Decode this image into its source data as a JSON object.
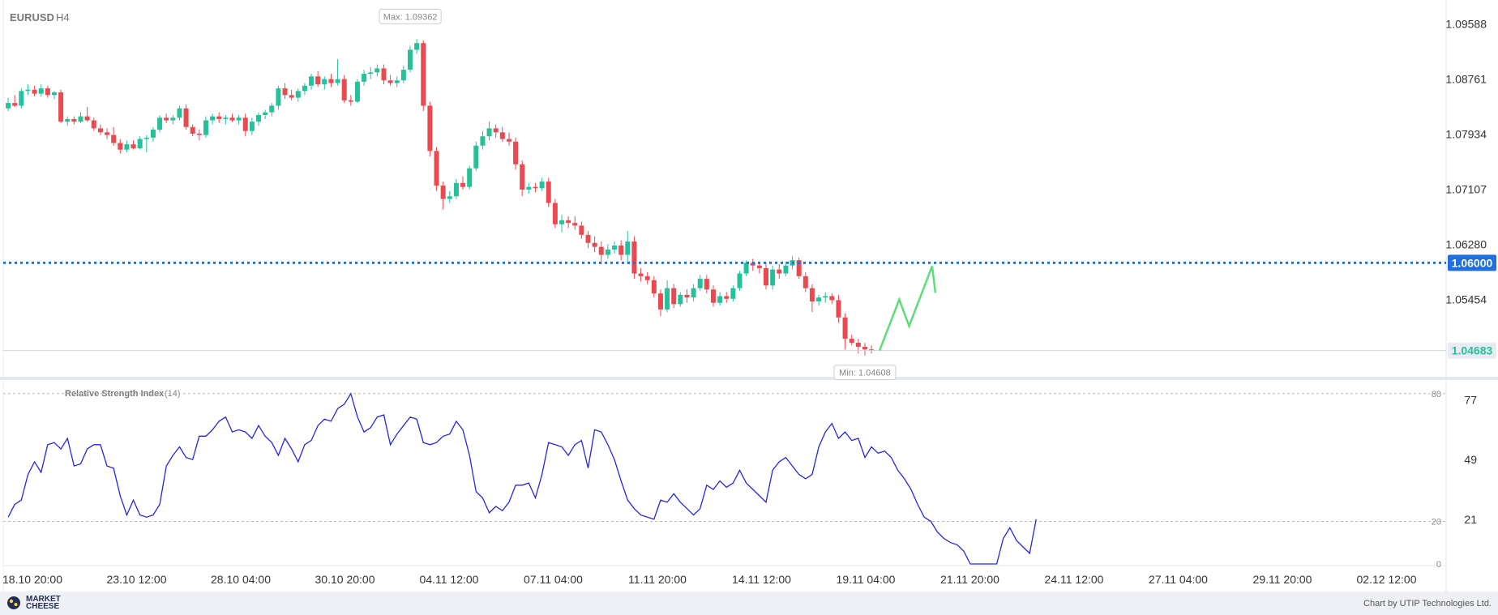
{
  "colors": {
    "up": "#26c09a",
    "down": "#e84a4f",
    "rsi_line": "#2727d6",
    "level_line": "#1f6fe0",
    "forecast": "#5fdc7a",
    "grid_dashed": "#bbbbbb"
  },
  "footer": {
    "logo_line1": "MARKET",
    "logo_line2": "CHEESE",
    "credit": "Chart by UTIP Technologies Ltd."
  },
  "chart_data": [
    {
      "type": "candlestick",
      "title": "EURUSD",
      "timeframe": "H4",
      "y_ticks": [
        "1.09588",
        "1.08761",
        "1.07934",
        "1.07107",
        "1.06280",
        "1.05454"
      ],
      "ylim": [
        1.0435,
        1.0985
      ],
      "max_label": "Max: 1.09362",
      "min_label": "Min: 1.04608",
      "level_value": 1.06,
      "level_label": "1.06000",
      "last_price_label": "1.04683",
      "last_price_value": 1.04683,
      "forecast_path": [
        [
          1.04683,
          0
        ],
        [
          1.0545,
          6
        ],
        [
          1.0505,
          9
        ],
        [
          1.0595,
          16
        ],
        [
          1.0555,
          17
        ]
      ],
      "ohlc": [
        [
          1.0832,
          1.0848,
          1.0828,
          1.084
        ],
        [
          1.084,
          1.0852,
          1.0834,
          1.0836
        ],
        [
          1.0836,
          1.0862,
          1.0832,
          1.0858
        ],
        [
          1.0858,
          1.0868,
          1.0852,
          1.086
        ],
        [
          1.086,
          1.0866,
          1.085,
          1.0854
        ],
        [
          1.0854,
          1.0868,
          1.085,
          1.0862
        ],
        [
          1.0862,
          1.0866,
          1.0848,
          1.0852
        ],
        [
          1.0852,
          1.0858,
          1.0846,
          1.0856
        ],
        [
          1.0856,
          1.086,
          1.081,
          1.0812
        ],
        [
          1.0812,
          1.082,
          1.0806,
          1.0816
        ],
        [
          1.0816,
          1.082,
          1.0808,
          1.0812
        ],
        [
          1.0812,
          1.0826,
          1.081,
          1.082
        ],
        [
          1.082,
          1.0834,
          1.0812,
          1.0814
        ],
        [
          1.0814,
          1.0818,
          1.0798,
          1.0802
        ],
        [
          1.0802,
          1.0808,
          1.0792,
          1.0796
        ],
        [
          1.0796,
          1.0802,
          1.0786,
          1.0792
        ],
        [
          1.0792,
          1.0804,
          1.0776,
          1.078
        ],
        [
          1.078,
          1.0786,
          1.0764,
          1.077
        ],
        [
          1.077,
          1.0784,
          1.0766,
          1.0778
        ],
        [
          1.0778,
          1.0784,
          1.077,
          1.0772
        ],
        [
          1.0772,
          1.079,
          1.077,
          1.0786
        ],
        [
          1.0786,
          1.0792,
          1.0766,
          1.0788
        ],
        [
          1.0788,
          1.0804,
          1.0782,
          1.08
        ],
        [
          1.08,
          1.0822,
          1.0796,
          1.0818
        ],
        [
          1.0818,
          1.0824,
          1.081,
          1.0814
        ],
        [
          1.0814,
          1.0822,
          1.0808,
          1.0818
        ],
        [
          1.0818,
          1.0836,
          1.0814,
          1.0832
        ],
        [
          1.0832,
          1.0838,
          1.08,
          1.0804
        ],
        [
          1.0804,
          1.0808,
          1.079,
          1.0794
        ],
        [
          1.0794,
          1.08,
          1.0784,
          1.0792
        ],
        [
          1.0792,
          1.082,
          1.0788,
          1.0814
        ],
        [
          1.0814,
          1.0824,
          1.0808,
          1.082
        ],
        [
          1.082,
          1.0826,
          1.081,
          1.0816
        ],
        [
          1.0816,
          1.0822,
          1.0808,
          1.0818
        ],
        [
          1.0818,
          1.0824,
          1.0812,
          1.0814
        ],
        [
          1.0814,
          1.0822,
          1.0808,
          1.0818
        ],
        [
          1.0818,
          1.0824,
          1.079,
          1.0798
        ],
        [
          1.0798,
          1.0818,
          1.0792,
          1.0812
        ],
        [
          1.0812,
          1.0826,
          1.0806,
          1.0822
        ],
        [
          1.0822,
          1.083,
          1.0816,
          1.0826
        ],
        [
          1.0826,
          1.084,
          1.082,
          1.0836
        ],
        [
          1.0836,
          1.0866,
          1.083,
          1.0862
        ],
        [
          1.0862,
          1.087,
          1.0846,
          1.0852
        ],
        [
          1.0852,
          1.086,
          1.0844,
          1.0848
        ],
        [
          1.0848,
          1.0862,
          1.0842,
          1.0858
        ],
        [
          1.0858,
          1.087,
          1.0852,
          1.0866
        ],
        [
          1.0866,
          1.0884,
          1.086,
          1.088
        ],
        [
          1.088,
          1.0888,
          1.0864,
          1.0868
        ],
        [
          1.0868,
          1.088,
          1.086,
          1.0876
        ],
        [
          1.0876,
          1.0884,
          1.0864,
          1.087
        ],
        [
          1.087,
          1.0906,
          1.0866,
          1.0876
        ],
        [
          1.0876,
          1.0882,
          1.084,
          1.0844
        ],
        [
          1.0844,
          1.0852,
          1.0836,
          1.0842
        ],
        [
          1.0842,
          1.0876,
          1.084,
          1.0872
        ],
        [
          1.0872,
          1.089,
          1.0866,
          1.0884
        ],
        [
          1.0884,
          1.0894,
          1.0876,
          1.0886
        ],
        [
          1.0886,
          1.0898,
          1.088,
          1.0892
        ],
        [
          1.0892,
          1.0898,
          1.0868,
          1.0874
        ],
        [
          1.0874,
          1.0882,
          1.0866,
          1.087
        ],
        [
          1.087,
          1.088,
          1.0864,
          1.0874
        ],
        [
          1.0874,
          1.0896,
          1.087,
          1.089
        ],
        [
          1.089,
          1.0926,
          1.0886,
          1.092
        ],
        [
          1.092,
          1.0936,
          1.0914,
          1.093
        ],
        [
          1.093,
          1.0934,
          1.0828,
          1.0836
        ],
        [
          1.0836,
          1.0842,
          1.076,
          1.0768
        ],
        [
          1.0768,
          1.0774,
          1.0708,
          1.0716
        ],
        [
          1.0716,
          1.0722,
          1.068,
          1.0696
        ],
        [
          1.0696,
          1.0708,
          1.069,
          1.07
        ],
        [
          1.07,
          1.0726,
          1.0696,
          1.072
        ],
        [
          1.072,
          1.073,
          1.071,
          1.0714
        ],
        [
          1.0714,
          1.0746,
          1.071,
          1.0742
        ],
        [
          1.0742,
          1.0782,
          1.0738,
          1.0776
        ],
        [
          1.0776,
          1.0798,
          1.077,
          1.079
        ],
        [
          1.079,
          1.0812,
          1.0784,
          1.0802
        ],
        [
          1.0802,
          1.0808,
          1.0788,
          1.0796
        ],
        [
          1.0796,
          1.0804,
          1.0782,
          1.0786
        ],
        [
          1.0786,
          1.0796,
          1.0776,
          1.0782
        ],
        [
          1.0782,
          1.0788,
          1.074,
          1.0748
        ],
        [
          1.0748,
          1.0754,
          1.07,
          1.071
        ],
        [
          1.071,
          1.072,
          1.0704,
          1.0714
        ],
        [
          1.0714,
          1.072,
          1.0706,
          1.0712
        ],
        [
          1.0712,
          1.0728,
          1.0708,
          1.0722
        ],
        [
          1.0722,
          1.0728,
          1.0684,
          1.069
        ],
        [
          1.069,
          1.0696,
          1.0652,
          1.0658
        ],
        [
          1.0658,
          1.0672,
          1.0646,
          1.0664
        ],
        [
          1.0664,
          1.067,
          1.0652,
          1.066
        ],
        [
          1.066,
          1.067,
          1.065,
          1.0656
        ],
        [
          1.0656,
          1.0662,
          1.0636,
          1.0642
        ],
        [
          1.0642,
          1.0648,
          1.0622,
          1.063
        ],
        [
          1.063,
          1.064,
          1.0616,
          1.0624
        ],
        [
          1.0624,
          1.0632,
          1.0598,
          1.0612
        ],
        [
          1.0612,
          1.0628,
          1.0606,
          1.062
        ],
        [
          1.062,
          1.0632,
          1.0614,
          1.0626
        ],
        [
          1.0626,
          1.0634,
          1.0604,
          1.0612
        ],
        [
          1.0612,
          1.0648,
          1.0598,
          1.0632
        ],
        [
          1.0632,
          1.064,
          1.0576,
          1.0584
        ],
        [
          1.0584,
          1.0592,
          1.0572,
          1.058
        ],
        [
          1.058,
          1.0586,
          1.0568,
          1.0574
        ],
        [
          1.0574,
          1.058,
          1.0548,
          1.0554
        ],
        [
          1.0554,
          1.056,
          1.052,
          1.053
        ],
        [
          1.053,
          1.0574,
          1.0526,
          1.0562
        ],
        [
          1.0562,
          1.0568,
          1.0532,
          1.0538
        ],
        [
          1.0538,
          1.0556,
          1.0534,
          1.0552
        ],
        [
          1.0552,
          1.056,
          1.054,
          1.0548
        ],
        [
          1.0548,
          1.0568,
          1.0542,
          1.0562
        ],
        [
          1.0562,
          1.0582,
          1.0558,
          1.0576
        ],
        [
          1.0576,
          1.0582,
          1.0554,
          1.056
        ],
        [
          1.056,
          1.0566,
          1.0534,
          1.054
        ],
        [
          1.054,
          1.0556,
          1.0536,
          1.055
        ],
        [
          1.055,
          1.0556,
          1.054,
          1.0546
        ],
        [
          1.0546,
          1.0566,
          1.0542,
          1.0562
        ],
        [
          1.0562,
          1.0588,
          1.0558,
          1.0584
        ],
        [
          1.0584,
          1.0604,
          1.058,
          1.06
        ],
        [
          1.06,
          1.0606,
          1.0588,
          1.0596
        ],
        [
          1.0596,
          1.0602,
          1.0584,
          1.0592
        ],
        [
          1.0592,
          1.06,
          1.056,
          1.0566
        ],
        [
          1.0566,
          1.0596,
          1.056,
          1.059
        ],
        [
          1.059,
          1.0598,
          1.0576,
          1.0584
        ],
        [
          1.0584,
          1.0602,
          1.058,
          1.0596
        ],
        [
          1.0596,
          1.061,
          1.059,
          1.0604
        ],
        [
          1.0604,
          1.0608,
          1.0576,
          1.058
        ],
        [
          1.058,
          1.0586,
          1.0556,
          1.0562
        ],
        [
          1.0562,
          1.0568,
          1.0526,
          1.0542
        ],
        [
          1.0542,
          1.0552,
          1.0536,
          1.0548
        ],
        [
          1.0548,
          1.0556,
          1.054,
          1.055
        ],
        [
          1.055,
          1.0554,
          1.0538,
          1.0544
        ],
        [
          1.0544,
          1.0552,
          1.051,
          1.0518
        ],
        [
          1.0518,
          1.0524,
          1.047,
          1.0486
        ],
        [
          1.0486,
          1.0492,
          1.0476,
          1.048
        ],
        [
          1.048,
          1.0486,
          1.0464,
          1.0474
        ],
        [
          1.0474,
          1.048,
          1.0461,
          1.047
        ],
        [
          1.047,
          1.0476,
          1.0464,
          1.0468
        ]
      ]
    },
    {
      "type": "line",
      "title": "Relative Strength Index",
      "period": "(14)",
      "y_ticks_right": [
        "77",
        "49",
        "21"
      ],
      "level_labels": [
        "80",
        "20",
        "0"
      ],
      "levels": [
        80,
        20,
        0
      ],
      "ylim": [
        0,
        86
      ],
      "values": [
        22,
        28,
        30,
        42,
        48,
        43,
        56,
        57,
        54,
        59,
        46,
        47,
        54,
        56,
        56,
        46,
        45,
        32,
        23,
        30,
        23,
        22,
        23,
        28,
        46,
        51,
        55,
        50,
        49,
        60,
        60,
        63,
        67,
        69,
        62,
        63,
        62,
        59,
        65,
        60,
        57,
        51,
        59,
        54,
        48,
        56,
        58,
        65,
        68,
        67,
        73,
        75,
        80,
        69,
        62,
        64,
        69,
        70,
        56,
        61,
        65,
        69,
        68,
        57,
        56,
        57,
        60,
        61,
        67,
        63,
        51,
        34,
        31,
        24,
        27,
        25,
        29,
        37,
        37,
        38,
        31,
        42,
        57,
        56,
        55,
        51,
        56,
        58,
        45,
        63,
        62,
        56,
        49,
        39,
        30,
        26,
        23,
        22,
        21,
        30,
        29,
        33,
        29,
        26,
        23,
        26,
        37,
        35,
        39,
        36,
        38,
        44,
        38,
        35,
        32,
        29,
        44,
        48,
        50,
        46,
        42,
        40,
        42,
        55,
        62,
        66,
        59,
        62,
        58,
        59,
        50,
        55,
        52,
        53,
        50,
        44,
        40,
        35,
        28,
        22,
        20,
        15,
        12,
        10,
        9,
        6,
        0,
        0,
        0,
        0,
        0,
        12,
        17,
        11,
        8,
        5,
        21
      ]
    }
  ],
  "x_ticks": [
    "18.10 20:00",
    "23.10 12:00",
    "28.10 04:00",
    "30.10 20:00",
    "04.11 12:00",
    "07.11 04:00",
    "11.11 20:00",
    "14.11 12:00",
    "19.11 04:00",
    "21.11 20:00",
    "24.11 12:00",
    "27.11 04:00",
    "29.11 20:00",
    "02.12 12:00"
  ]
}
